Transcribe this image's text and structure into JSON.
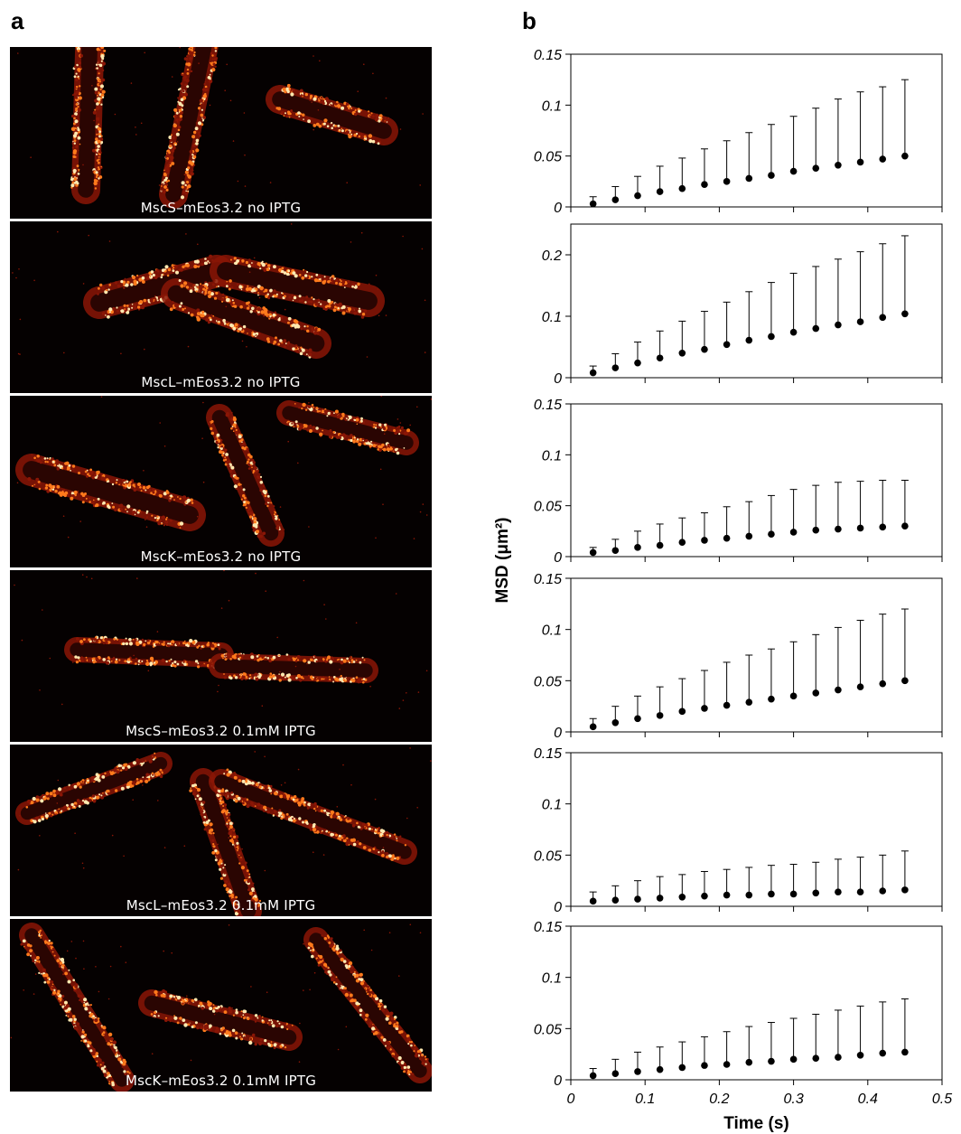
{
  "panel_letters": {
    "a": "a",
    "b": "b"
  },
  "micrograph_labels": [
    "MscS–mEos3.2 no IPTG",
    "MscL–mEos3.2 no IPTG",
    "MscK–mEos3.2 no IPTG",
    "MscS–mEos3.2 0.1mM IPTG",
    "MscL–mEos3.2 0.1mM IPTG",
    "MscK–mEos3.2 0.1mM IPTG"
  ],
  "colors": {
    "cell_hot": "#ffe9b0",
    "cell_mid": "#ff7a1c",
    "cell_dim": "#8a1606",
    "background": "#050101",
    "marker": "#000000"
  },
  "chart_data": {
    "type": "scatter",
    "xlabel": "Time (s)",
    "ylabel": "MSD (μm²)",
    "xlim": [
      0,
      0.5
    ],
    "x_ticks": [
      "0",
      "0.1",
      "0.2",
      "0.3",
      "0.4",
      "0.5"
    ],
    "shared_x": true,
    "x": [
      0.03,
      0.06,
      0.09,
      0.12,
      0.15,
      0.18,
      0.21,
      0.24,
      0.27,
      0.3,
      0.33,
      0.36,
      0.39,
      0.42,
      0.45
    ],
    "panels": [
      {
        "ylim": [
          0,
          0.15
        ],
        "y_ticks": [
          "0",
          "0.05",
          "0.1",
          "0.15"
        ],
        "values": [
          0.003,
          0.007,
          0.011,
          0.015,
          0.018,
          0.022,
          0.025,
          0.028,
          0.031,
          0.035,
          0.038,
          0.041,
          0.044,
          0.047,
          0.05
        ],
        "error_upper": [
          0.01,
          0.02,
          0.03,
          0.04,
          0.048,
          0.057,
          0.065,
          0.073,
          0.081,
          0.089,
          0.097,
          0.106,
          0.113,
          0.118,
          0.125
        ]
      },
      {
        "ylim": [
          0,
          0.25
        ],
        "y_ticks": [
          "0",
          "0.1",
          "0.2"
        ],
        "values": [
          0.008,
          0.016,
          0.024,
          0.032,
          0.04,
          0.046,
          0.054,
          0.061,
          0.067,
          0.074,
          0.08,
          0.086,
          0.091,
          0.098,
          0.104
        ],
        "error_upper": [
          0.019,
          0.039,
          0.058,
          0.076,
          0.092,
          0.108,
          0.123,
          0.14,
          0.155,
          0.17,
          0.181,
          0.193,
          0.205,
          0.218,
          0.231
        ]
      },
      {
        "ylim": [
          0,
          0.15
        ],
        "y_ticks": [
          "0",
          "0.05",
          "0.1",
          "0.15"
        ],
        "values": [
          0.004,
          0.006,
          0.009,
          0.011,
          0.014,
          0.016,
          0.018,
          0.02,
          0.022,
          0.024,
          0.026,
          0.027,
          0.028,
          0.029,
          0.03
        ],
        "error_upper": [
          0.009,
          0.017,
          0.025,
          0.032,
          0.038,
          0.043,
          0.049,
          0.054,
          0.06,
          0.066,
          0.07,
          0.073,
          0.074,
          0.075,
          0.075
        ]
      },
      {
        "ylim": [
          0,
          0.15
        ],
        "y_ticks": [
          "0",
          "0.05",
          "0.1",
          "0.15"
        ],
        "values": [
          0.005,
          0.009,
          0.013,
          0.016,
          0.02,
          0.023,
          0.026,
          0.029,
          0.032,
          0.035,
          0.038,
          0.041,
          0.044,
          0.047,
          0.05
        ],
        "error_upper": [
          0.013,
          0.025,
          0.035,
          0.044,
          0.052,
          0.06,
          0.068,
          0.075,
          0.081,
          0.088,
          0.095,
          0.102,
          0.109,
          0.115,
          0.12
        ]
      },
      {
        "ylim": [
          0,
          0.15
        ],
        "y_ticks": [
          "0",
          "0.05",
          "0.1",
          "0.15"
        ],
        "values": [
          0.005,
          0.006,
          0.007,
          0.008,
          0.009,
          0.01,
          0.011,
          0.011,
          0.012,
          0.012,
          0.013,
          0.014,
          0.014,
          0.015,
          0.016
        ],
        "error_upper": [
          0.014,
          0.02,
          0.025,
          0.029,
          0.031,
          0.034,
          0.036,
          0.038,
          0.04,
          0.041,
          0.043,
          0.046,
          0.048,
          0.05,
          0.054
        ]
      },
      {
        "ylim": [
          0,
          0.15
        ],
        "y_ticks": [
          "0",
          "0.05",
          "0.1",
          "0.15"
        ],
        "values": [
          0.004,
          0.006,
          0.008,
          0.01,
          0.012,
          0.014,
          0.015,
          0.017,
          0.018,
          0.02,
          0.021,
          0.022,
          0.024,
          0.026,
          0.027
        ],
        "error_upper": [
          0.011,
          0.02,
          0.027,
          0.032,
          0.037,
          0.042,
          0.047,
          0.052,
          0.056,
          0.06,
          0.064,
          0.068,
          0.072,
          0.076,
          0.079
        ]
      }
    ]
  }
}
